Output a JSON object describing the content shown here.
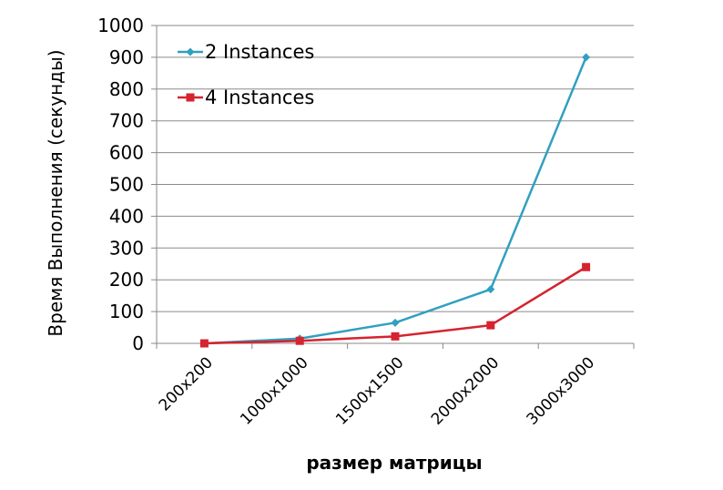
{
  "chart_data": {
    "type": "line",
    "title": "",
    "xlabel": "размер матрицы",
    "ylabel": "Время  Выполнения (секунды)",
    "categories": [
      "200x200",
      "1000x1000",
      "1500x1500",
      "2000x2000",
      "3000x3000"
    ],
    "ylim": [
      0,
      1000
    ],
    "yticks": [
      0,
      100,
      200,
      300,
      400,
      500,
      600,
      700,
      800,
      900,
      1000
    ],
    "grid": "horizontal",
    "legend_position": "top-left",
    "series": [
      {
        "name": "2 Instances",
        "values": [
          0,
          15,
          65,
          170,
          900
        ],
        "color": "#31a0c0",
        "marker": "diamond"
      },
      {
        "name": "4 Instances",
        "values": [
          0,
          8,
          22,
          57,
          240
        ],
        "color": "#d5232f",
        "marker": "square"
      }
    ]
  }
}
